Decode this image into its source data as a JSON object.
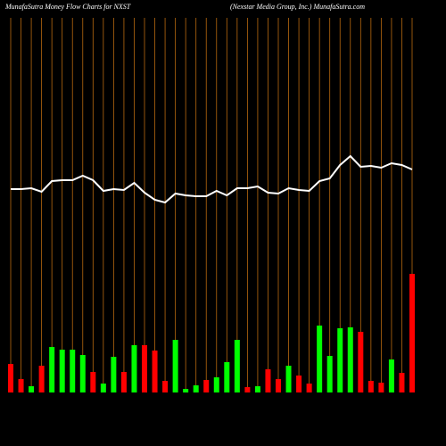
{
  "chart_data": {
    "type": "bar",
    "title": "MunafaSutra  Money Flow  Charts for NXST",
    "subtitle": "(Nexstar Media  Group,  Inc.) MunafaSutra.com",
    "ylim": [
      0,
      440
    ],
    "gridline_color": "#b8690f",
    "line_color": "#ffffff",
    "series": [
      {
        "name": "Money flow",
        "values": [
          32,
          15,
          7,
          30,
          51,
          48,
          48,
          42,
          23,
          10,
          40,
          23,
          53,
          53,
          47,
          13,
          59,
          4,
          8,
          14,
          17,
          34,
          59,
          6,
          7,
          26,
          15,
          30,
          19,
          10,
          75,
          41,
          72,
          73,
          68,
          13,
          11,
          37,
          22,
          133
        ],
        "colors": [
          "#ff0000",
          "#ff0000",
          "#00ff00",
          "#ff0000",
          "#00ff00",
          "#00ff00",
          "#00ff00",
          "#00ff00",
          "#ff0000",
          "#00ff00",
          "#00ff00",
          "#ff0000",
          "#00ff00",
          "#ff0000",
          "#ff0000",
          "#ff0000",
          "#00ff00",
          "#00ff00",
          "#00ff00",
          "#ff0000",
          "#00ff00",
          "#00ff00",
          "#00ff00",
          "#ff0000",
          "#00ff00",
          "#ff0000",
          "#ff0000",
          "#00ff00",
          "#ff0000",
          "#ff0000",
          "#00ff00",
          "#00ff00",
          "#00ff00",
          "#00ff00",
          "#ff0000",
          "#ff0000",
          "#ff0000",
          "#00ff00",
          "#ff0000",
          "#ff0000"
        ]
      },
      {
        "name": "Price",
        "values": [
          228,
          228,
          229,
          225,
          237,
          238,
          238,
          243,
          238,
          226,
          228,
          227,
          235,
          224,
          216,
          213,
          223,
          221,
          220,
          220,
          226,
          221,
          229,
          229,
          231,
          224,
          223,
          229,
          227,
          226,
          237,
          240,
          255,
          265,
          253,
          254,
          252,
          257,
          255,
          250
        ]
      }
    ]
  }
}
